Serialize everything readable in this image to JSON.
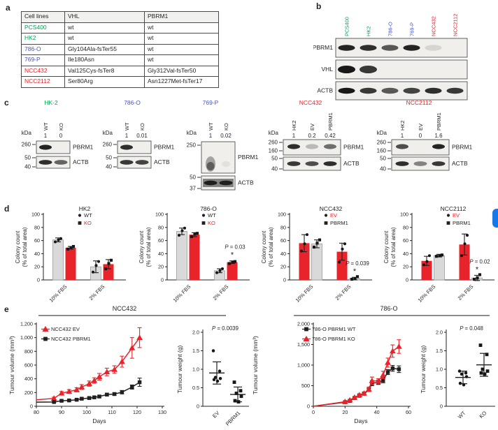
{
  "ui": {
    "panel_labels": [
      "a",
      "b",
      "c",
      "d",
      "e"
    ],
    "edge_widget": {
      "visible": true
    }
  },
  "colors": {
    "red": "#e8242a",
    "red_text": "#ed2224",
    "green": "#00a651",
    "blue": "#4353c4",
    "black": "#231f20",
    "gray_bar": "#d9d9d9",
    "gray_bar_stroke": "#9a9a9a",
    "blot_bg": "#f0efec",
    "band": "#181818",
    "rule": "#8c8c8c",
    "edge_blue": "#1878e8"
  },
  "table": {
    "headers": [
      "Cell lines",
      "VHL",
      "PBRM1"
    ],
    "rows": [
      {
        "cell_line": "PCS400",
        "color": "green",
        "vhl": "wt",
        "pbrm1": "wt"
      },
      {
        "cell_line": "HK2",
        "color": "green",
        "vhl": "wt",
        "pbrm1": "wt"
      },
      {
        "cell_line": "786-O",
        "color": "blue",
        "vhl": "Gly104Ala-fsTer55",
        "pbrm1": "wt"
      },
      {
        "cell_line": "769-P",
        "color": "blue",
        "vhl": "Ile180Asn",
        "pbrm1": "wt"
      },
      {
        "cell_line": "NCC432",
        "color": "red",
        "vhl": "Val125Cys-fsTer8",
        "pbrm1": "Gly312Val-fsTer50"
      },
      {
        "cell_line": "NCC2112",
        "color": "red",
        "vhl": "Ser80Arg",
        "pbrm1": "Asn1227Met-fsTer17"
      }
    ]
  },
  "panel_b": {
    "lanes": [
      {
        "label": "PCS400",
        "color": "green"
      },
      {
        "label": "HK2",
        "color": "green"
      },
      {
        "label": "786-O",
        "color": "blue"
      },
      {
        "label": "769-P",
        "color": "blue"
      },
      {
        "label": "NCC432",
        "color": "red"
      },
      {
        "label": "NCC2112",
        "color": "red"
      }
    ],
    "rows": [
      {
        "label": "PBRM1",
        "bands": [
          0.95,
          0.9,
          0.7,
          0.95,
          0.12,
          0
        ]
      },
      {
        "label": "VHL",
        "bands": [
          1,
          0.85,
          0,
          0,
          0,
          0
        ]
      },
      {
        "label": "ACTB",
        "bands": [
          1,
          0.85,
          0.7,
          0.8,
          0.9,
          0.85
        ]
      }
    ]
  },
  "panel_c": [
    {
      "title": "HK-2",
      "color": "green",
      "kda_label": "kDa",
      "lanes": [
        "WT",
        "KO"
      ],
      "values": [
        "1",
        "0"
      ],
      "pbrm1_label": "PBRM1",
      "actb_label": "ACTB",
      "pbrm1_kda": [
        "260"
      ],
      "actb_kda": [
        "50",
        "40"
      ],
      "pbrm1_bands": [
        0.95,
        0
      ],
      "actb_bands": [
        0.9,
        0.65
      ],
      "smear": false
    },
    {
      "title": "786-O",
      "color": "blue",
      "kda_label": "kDa",
      "lanes": [
        "WT",
        "KO"
      ],
      "values": [
        "1",
        "0.01"
      ],
      "pbrm1_label": "PBRM1",
      "actb_label": "ACTB",
      "pbrm1_kda": [
        "260"
      ],
      "actb_kda": [
        "50",
        "40"
      ],
      "pbrm1_bands": [
        0.9,
        0
      ],
      "actb_bands": [
        0.85,
        0.8
      ],
      "smear": false
    },
    {
      "title": "769-P",
      "color": "blue",
      "kda_label": "kDa",
      "lanes": [
        "WT",
        "KO"
      ],
      "values": [
        "1",
        "0.02"
      ],
      "pbrm1_label": "PBRM1",
      "actb_label": "ACTB",
      "pbrm1_kda": [
        "250"
      ],
      "actb_kda": [
        "50",
        "37"
      ],
      "pbrm1_bands": [
        0.8,
        0.06
      ],
      "actb_bands": [
        0.95,
        0.92
      ],
      "smear": true
    },
    {
      "title": "NCC432",
      "color": "red",
      "kda_label": "kDa",
      "lanes": [
        "HK2",
        "EV",
        "PBRM1"
      ],
      "values": [
        "1",
        "0.2",
        "0.42"
      ],
      "pbrm1_label": "PBRM1",
      "actb_label": "ACTB",
      "pbrm1_kda": [
        "260",
        "160"
      ],
      "actb_kda": [
        "50",
        "40"
      ],
      "pbrm1_bands": [
        0.9,
        0.25,
        0.6
      ],
      "actb_bands": [
        0.85,
        0.75,
        0.9
      ],
      "smear": false
    },
    {
      "title": "NCC2112",
      "color": "red",
      "kda_label": "kDa",
      "lanes": [
        "HK2",
        "EV",
        "PBRM1"
      ],
      "values": [
        "1",
        "0",
        "1.6"
      ],
      "pbrm1_label": "PBRM1",
      "actb_label": "ACTB",
      "pbrm1_kda": [
        "260",
        "160"
      ],
      "actb_kda": [
        "50",
        "40"
      ],
      "pbrm1_bands": [
        0.75,
        0,
        0.95
      ],
      "actb_bands": [
        0.9,
        0.5,
        0.85
      ],
      "smear": false
    }
  ],
  "chart_data": [
    {
      "type": "bar",
      "title": "HK2",
      "ylabel_line1": "Colony count",
      "ylabel_line2": "(% of total area)",
      "ylim": [
        0,
        100
      ],
      "yticks": [
        0,
        20,
        40,
        60,
        80,
        100
      ],
      "categories": [
        "10% FBS",
        "2% FBS"
      ],
      "series": [
        {
          "name": "WT",
          "marker": "circle",
          "bar_color": "#d9d9d9",
          "bar_stroke": "#9a9a9a",
          "label_color": "#231f20",
          "values": [
            61,
            20
          ],
          "errors": [
            3,
            9
          ],
          "points": [
            [
              58,
              61,
              63
            ],
            [
              12,
              22,
              28
            ]
          ]
        },
        {
          "name": "KO",
          "marker": "square",
          "bar_color": "#e8242a",
          "bar_stroke": null,
          "label_color": "#ed2224",
          "values": [
            49,
            24
          ],
          "errors": [
            2,
            7
          ],
          "points": [
            [
              47,
              49,
              51
            ],
            [
              17,
              25,
              30
            ]
          ]
        }
      ],
      "p": null
    },
    {
      "type": "bar",
      "title": "786-O",
      "ylabel_line1": "Colony count",
      "ylabel_line2": "(% of total area)",
      "ylim": [
        0,
        100
      ],
      "yticks": [
        0,
        20,
        40,
        60,
        80,
        100
      ],
      "categories": [
        "10% FBS",
        "2% FBS"
      ],
      "series": [
        {
          "name": "WT",
          "marker": "circle",
          "bar_color": "#d9d9d9",
          "bar_stroke": "#9a9a9a",
          "label_color": "#231f20",
          "values": [
            74,
            14
          ],
          "errors": [
            5,
            3
          ],
          "points": [
            [
              68,
              75,
              79
            ],
            [
              11,
              14,
              17
            ]
          ]
        },
        {
          "name": "KO",
          "marker": "square",
          "bar_color": "#e8242a",
          "bar_stroke": null,
          "label_color": "#ed2224",
          "values": [
            69,
            27
          ],
          "errors": [
            3,
            2
          ],
          "points": [
            [
              66,
              70,
              71
            ],
            [
              25,
              27,
              28
            ]
          ]
        }
      ],
      "p": {
        "label": "P = 0.03",
        "category": 1,
        "series": 1
      }
    },
    {
      "type": "bar",
      "title": "NCC432",
      "ylabel_line1": "Colony count",
      "ylabel_line2": "(% of total area)",
      "ylim": [
        0,
        100
      ],
      "yticks": [
        0,
        20,
        40,
        60,
        80,
        100
      ],
      "categories": [
        "10% FBS",
        "2% FBS"
      ],
      "series": [
        {
          "name": "EV",
          "marker": "circle",
          "bar_color": "#e8242a",
          "bar_stroke": null,
          "label_color": "#ed2224",
          "values": [
            56,
            43
          ],
          "errors": [
            13,
            13
          ],
          "points": [
            [
              44,
              55,
              69
            ],
            [
              27,
              47,
              55
            ]
          ]
        },
        {
          "name": "PBRM1",
          "marker": "square",
          "bar_color": "#d9d9d9",
          "bar_stroke": "#9a9a9a",
          "label_color": "#231f20",
          "values": [
            55,
            2
          ],
          "errors": [
            6,
            2
          ],
          "points": [
            [
              50,
              56,
              61
            ],
            [
              1,
              2,
              5
            ]
          ]
        }
      ],
      "p": {
        "label": "P = 0.039",
        "category": 1,
        "series": 1
      }
    },
    {
      "type": "bar",
      "title": "NCC2112",
      "ylabel_line1": "Colony count",
      "ylabel_line2": "(% of total area)",
      "ylim": [
        0,
        100
      ],
      "yticks": [
        0,
        20,
        40,
        60,
        80,
        100
      ],
      "categories": [
        "10% FBS",
        "2% FBS"
      ],
      "series": [
        {
          "name": "EV",
          "marker": "circle",
          "bar_color": "#e8242a",
          "bar_stroke": null,
          "label_color": "#ed2224",
          "values": [
            29,
            54
          ],
          "errors": [
            7,
            16
          ],
          "points": [
            [
              23,
              28,
              37
            ],
            [
              37,
              55,
              68
            ]
          ]
        },
        {
          "name": "PBRM1",
          "marker": "square",
          "bar_color": "#d9d9d9",
          "bar_stroke": "#9a9a9a",
          "label_color": "#231f20",
          "values": [
            37,
            3
          ],
          "errors": [
            2,
            4
          ],
          "points": [
            [
              36,
              37,
              38
            ],
            [
              1,
              3,
              8
            ]
          ]
        }
      ],
      "p": {
        "label": "P = 0.02",
        "category": 1,
        "series": 1
      }
    },
    {
      "type": "line",
      "title": "NCC432",
      "xlabel": "Days",
      "ylabel": "Tumour volume (mm³)",
      "xlim": [
        80,
        130
      ],
      "xticks": [
        80,
        90,
        100,
        110,
        120,
        130
      ],
      "ylim": [
        0,
        1200
      ],
      "yticks": [
        0,
        200,
        400,
        600,
        800,
        1000,
        1200
      ],
      "ytick_labels": [
        "0",
        "200",
        "400",
        "600",
        "800",
        "1,000",
        "1,200"
      ],
      "series": [
        {
          "name": "NCC432 EV",
          "color": "#e8242a",
          "marker": "triangle",
          "x": [
            80,
            87,
            90,
            93,
            96,
            98,
            101,
            103,
            105,
            108,
            111,
            114,
            118,
            121
          ],
          "y": [
            95,
            115,
            190,
            215,
            240,
            280,
            330,
            375,
            430,
            500,
            535,
            650,
            850,
            1000
          ],
          "err": [
            0,
            18,
            25,
            28,
            30,
            35,
            38,
            40,
            48,
            55,
            55,
            80,
            150,
            145
          ]
        },
        {
          "name": "NCC432 PBRM1",
          "color": "#231f20",
          "marker": "square",
          "x": [
            80,
            87,
            90,
            93,
            96,
            98,
            101,
            103,
            105,
            108,
            111,
            114,
            118,
            121
          ],
          "y": [
            60,
            62,
            80,
            85,
            95,
            110,
            120,
            130,
            142,
            170,
            178,
            205,
            280,
            350
          ],
          "err": [
            0,
            8,
            10,
            10,
            12,
            14,
            15,
            15,
            18,
            20,
            20,
            25,
            30,
            60
          ]
        }
      ]
    },
    {
      "type": "scatter",
      "p_label": "P = 0.0039",
      "ylabel": "Tumour weight (g)",
      "ylim": [
        0,
        2
      ],
      "yticks": [
        0,
        0.5,
        1,
        1.5,
        2
      ],
      "ytick_labels": [
        "0",
        "0.5",
        "1.0",
        "1.5",
        "2.0"
      ],
      "categories": [
        {
          "label": "EV",
          "marker": "circle",
          "points": [
            1.5,
            0.95,
            0.78,
            0.75,
            0.72,
            0.68
          ],
          "mean": 0.9,
          "sd": 0.3
        },
        {
          "label": "PBRM1",
          "marker": "square",
          "points": [
            0.65,
            0.42,
            0.35,
            0.27,
            0.15,
            0.12
          ],
          "mean": 0.32,
          "sd": 0.2
        }
      ]
    },
    {
      "type": "line",
      "title": "786-O",
      "xlabel": "Days",
      "ylabel": "Tumour volume (mm³)",
      "xlim": [
        0,
        60
      ],
      "xticks": [
        0,
        20,
        40,
        60
      ],
      "ylim": [
        0,
        2000
      ],
      "yticks": [
        0,
        500,
        1000,
        1500,
        2000
      ],
      "ytick_labels": [
        "0",
        "500",
        "1,000",
        "1,500",
        "2,000"
      ],
      "series": [
        {
          "name": "786-O PBRM1 WT",
          "color": "#231f20",
          "marker": "square",
          "x": [
            0,
            20,
            23,
            26,
            29,
            32,
            35,
            37,
            41,
            44,
            47,
            50,
            54
          ],
          "y": [
            0,
            100,
            130,
            200,
            255,
            305,
            400,
            560,
            580,
            630,
            830,
            920,
            900
          ],
          "err": [
            0,
            15,
            15,
            20,
            25,
            30,
            40,
            60,
            50,
            60,
            60,
            70,
            80
          ]
        },
        {
          "name": "786-O PBRM1 KO",
          "color": "#e8242a",
          "marker": "triangle",
          "x": [
            0,
            20,
            23,
            26,
            29,
            32,
            35,
            37,
            41,
            44,
            47,
            50,
            54
          ],
          "y": [
            0,
            110,
            150,
            215,
            275,
            315,
            415,
            620,
            610,
            760,
            1060,
            1340,
            1450
          ],
          "err": [
            0,
            15,
            20,
            25,
            30,
            35,
            50,
            90,
            60,
            90,
            110,
            150,
            165
          ]
        }
      ]
    },
    {
      "type": "scatter",
      "p_label": "P = 0.048",
      "ylabel": "Tumour weight (g)",
      "ylim": [
        0,
        2
      ],
      "yticks": [
        0,
        0.5,
        1,
        1.5,
        2
      ],
      "ytick_labels": [
        "0",
        "0.5",
        "1.0",
        "1.5",
        "2.0"
      ],
      "categories": [
        {
          "label": "WT",
          "marker": "circle",
          "points": [
            0.95,
            0.9,
            0.87,
            0.8,
            0.62,
            0.58
          ],
          "mean": 0.78,
          "sd": 0.17
        },
        {
          "label": "KO",
          "marker": "square",
          "points": [
            1.65,
            1.4,
            1.0,
            0.95,
            0.9,
            0.87
          ],
          "mean": 1.12,
          "sd": 0.31
        }
      ]
    }
  ]
}
